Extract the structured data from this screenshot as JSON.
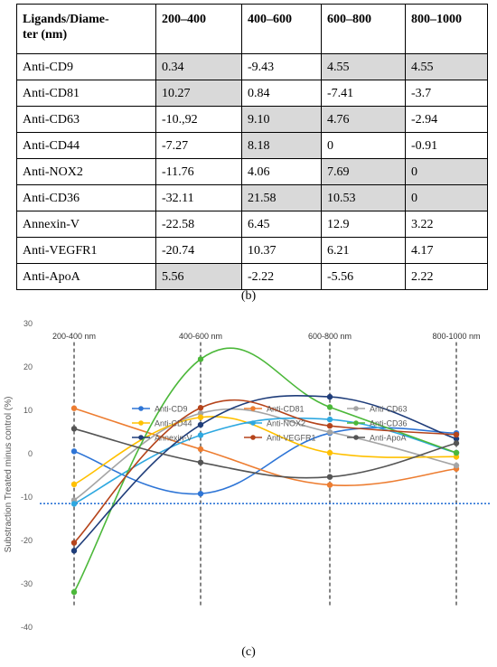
{
  "table": {
    "headers": [
      "Ligands/Diameter (nm)",
      "200–400",
      "400–600",
      "600–800",
      "800–1000"
    ],
    "header_first_lines": [
      "Ligands/Diame-",
      "ter (nm)"
    ],
    "rows": [
      {
        "cells": [
          "Anti-CD9",
          "0.34",
          "-9.43",
          "4.55",
          "4.55"
        ],
        "shaded": [
          false,
          true,
          false,
          true,
          true
        ]
      },
      {
        "cells": [
          "Anti-CD81",
          "10.27",
          "0.84",
          "-7.41",
          "-3.7"
        ],
        "shaded": [
          false,
          true,
          false,
          false,
          false
        ]
      },
      {
        "cells": [
          "Anti-CD63",
          "-10.,92",
          "9.10",
          "4.76",
          "-2.94"
        ],
        "shaded": [
          false,
          false,
          true,
          true,
          false
        ]
      },
      {
        "cells": [
          "Anti-CD44",
          "-7.27",
          "8.18",
          "0",
          "-0.91"
        ],
        "shaded": [
          false,
          false,
          true,
          false,
          false
        ]
      },
      {
        "cells": [
          "Anti-NOX2",
          "-11.76",
          "4.06",
          "7.69",
          "0"
        ],
        "shaded": [
          false,
          false,
          false,
          true,
          true
        ]
      },
      {
        "cells": [
          "Anti-CD36",
          "-32.11",
          "21.58",
          "10.53",
          "0"
        ],
        "shaded": [
          false,
          false,
          true,
          true,
          true
        ]
      },
      {
        "cells": [
          "Annexin-V",
          "-22.58",
          "6.45",
          "12.9",
          "3.22"
        ],
        "shaded": [
          false,
          false,
          false,
          false,
          false
        ]
      },
      {
        "cells": [
          "Anti-VEGFR1",
          "-20.74",
          "10.37",
          "6.21",
          "4.17"
        ],
        "shaded": [
          false,
          false,
          false,
          false,
          false
        ]
      },
      {
        "cells": [
          "Anti-ApoA",
          "5.56",
          "-2.22",
          "-5.56",
          "2.22"
        ],
        "shaded": [
          false,
          true,
          false,
          false,
          false
        ]
      }
    ]
  },
  "captions": {
    "b": "(b)",
    "c": "(c)"
  },
  "chart_data": {
    "type": "line",
    "categories": [
      "200-400 nm",
      "400-600 nm",
      "600-800 nm",
      "800-1000 nm"
    ],
    "ylabel": "Substraction Treated minus control (%)",
    "ylim": [
      -40,
      30
    ],
    "yticks": [
      30,
      20,
      10,
      0,
      -10,
      -20,
      -30,
      -40
    ],
    "threshold": -11.7,
    "legend_position": "bottom-center",
    "series": [
      {
        "name": "Anti-CD9",
        "color": "#2e75d6",
        "values": [
          0.34,
          -9.43,
          4.55,
          4.55
        ]
      },
      {
        "name": "Anti-CD81",
        "color": "#ed7d31",
        "values": [
          10.27,
          0.84,
          -7.41,
          -3.7
        ]
      },
      {
        "name": "Anti-CD63",
        "color": "#a5a5a5",
        "values": [
          -10.92,
          9.1,
          4.76,
          -2.94
        ]
      },
      {
        "name": "Anti-CD44",
        "color": "#ffc000",
        "values": [
          -7.27,
          8.18,
          0,
          -0.91
        ]
      },
      {
        "name": "Anti-NOX2",
        "color": "#2ea8e0",
        "values": [
          -11.76,
          4.06,
          7.69,
          0
        ]
      },
      {
        "name": "Anti-CD36",
        "color": "#4cb83a",
        "values": [
          -32.11,
          21.58,
          10.53,
          0
        ]
      },
      {
        "name": "Annexin-V",
        "color": "#1f3d7a",
        "values": [
          -22.58,
          6.45,
          12.9,
          3.22
        ]
      },
      {
        "name": "Anti-VEGFR1",
        "color": "#b5441b",
        "values": [
          -20.74,
          10.37,
          6.21,
          4.17
        ]
      },
      {
        "name": "Anti-ApoA",
        "color": "#555555",
        "values": [
          5.56,
          -2.22,
          -5.56,
          2.22
        ]
      }
    ]
  }
}
